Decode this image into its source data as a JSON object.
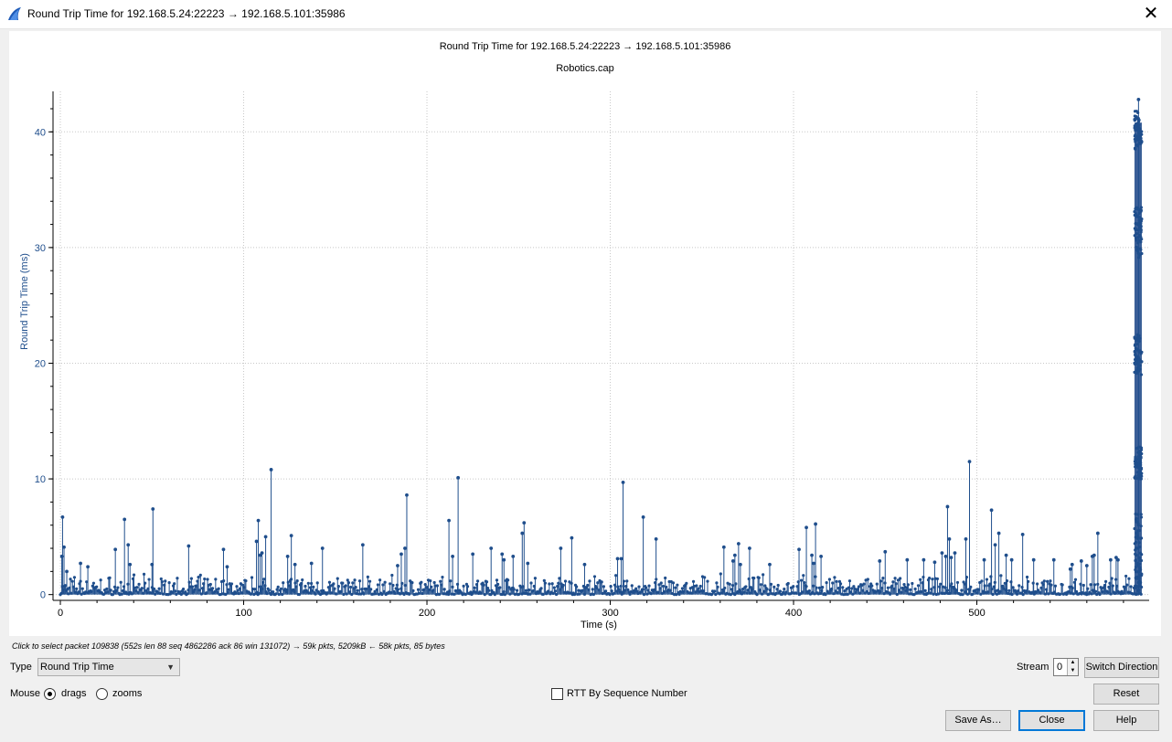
{
  "window": {
    "title": "Round Trip Time for 192.168.5.24:22223 → 192.168.5.101:35986"
  },
  "plot": {
    "title": "Round Trip Time for 192.168.5.24:22223 → 192.168.5.101:35986",
    "subtitle": "Robotics.cap",
    "accent_color": "#1f4e8c",
    "final_burst_color": "#3b5f97"
  },
  "chart_data": {
    "type": "scatter",
    "title": "Round Trip Time for 192.168.5.24:22223 → 192.168.5.101:35986",
    "subtitle": "Robotics.cap",
    "xlabel": "Time (s)",
    "ylabel": "Round Trip Time (ms)",
    "xlim": [
      -4,
      594
    ],
    "ylim": [
      -0.5,
      43.5
    ],
    "x_ticks": [
      0,
      100,
      200,
      300,
      400,
      500
    ],
    "y_ticks": [
      0,
      10,
      20,
      30,
      40
    ],
    "x_tick_labels": [
      "0",
      "100",
      "200",
      "300",
      "400",
      "500"
    ],
    "y_tick_labels": [
      "0",
      "10",
      "20",
      "30",
      "40"
    ],
    "grid": true,
    "style": "impulse-with-dots",
    "baseline_noise": {
      "x_start": 0,
      "x_end": 590,
      "typical_max_ms": 1.5
    },
    "spikes": [
      {
        "x": 0.8,
        "y": 3.3
      },
      {
        "x": 1.2,
        "y": 6.7
      },
      {
        "x": 2,
        "y": 4.1
      },
      {
        "x": 3.5,
        "y": 2.0
      },
      {
        "x": 11,
        "y": 2.7
      },
      {
        "x": 15,
        "y": 2.4
      },
      {
        "x": 30,
        "y": 3.9
      },
      {
        "x": 35,
        "y": 6.5
      },
      {
        "x": 37,
        "y": 4.3
      },
      {
        "x": 38,
        "y": 2.6
      },
      {
        "x": 50.5,
        "y": 7.4
      },
      {
        "x": 50,
        "y": 2.6
      },
      {
        "x": 70,
        "y": 4.2
      },
      {
        "x": 89,
        "y": 3.9
      },
      {
        "x": 91,
        "y": 2.4
      },
      {
        "x": 107,
        "y": 4.6
      },
      {
        "x": 108,
        "y": 6.4
      },
      {
        "x": 109,
        "y": 3.4
      },
      {
        "x": 110,
        "y": 3.6
      },
      {
        "x": 112,
        "y": 5.0
      },
      {
        "x": 115,
        "y": 10.8
      },
      {
        "x": 124,
        "y": 3.3
      },
      {
        "x": 126,
        "y": 5.1
      },
      {
        "x": 128,
        "y": 2.6
      },
      {
        "x": 137,
        "y": 2.7
      },
      {
        "x": 143,
        "y": 4.0
      },
      {
        "x": 165,
        "y": 4.3
      },
      {
        "x": 184,
        "y": 2.5
      },
      {
        "x": 186,
        "y": 3.5
      },
      {
        "x": 188,
        "y": 4.0
      },
      {
        "x": 189,
        "y": 8.6
      },
      {
        "x": 212,
        "y": 6.4
      },
      {
        "x": 214,
        "y": 3.3
      },
      {
        "x": 217,
        "y": 10.1
      },
      {
        "x": 225,
        "y": 3.5
      },
      {
        "x": 235,
        "y": 4.0
      },
      {
        "x": 241,
        "y": 3.5
      },
      {
        "x": 242,
        "y": 3.0
      },
      {
        "x": 247,
        "y": 3.3
      },
      {
        "x": 252,
        "y": 5.3
      },
      {
        "x": 253,
        "y": 6.2
      },
      {
        "x": 255,
        "y": 2.7
      },
      {
        "x": 273,
        "y": 4.0
      },
      {
        "x": 279,
        "y": 4.9
      },
      {
        "x": 286,
        "y": 2.6
      },
      {
        "x": 304,
        "y": 3.1
      },
      {
        "x": 306,
        "y": 3.1
      },
      {
        "x": 307,
        "y": 9.7
      },
      {
        "x": 318,
        "y": 6.7
      },
      {
        "x": 325,
        "y": 4.8
      },
      {
        "x": 362,
        "y": 4.1
      },
      {
        "x": 367,
        "y": 2.9
      },
      {
        "x": 368,
        "y": 3.4
      },
      {
        "x": 370,
        "y": 4.4
      },
      {
        "x": 371,
        "y": 2.6
      },
      {
        "x": 376,
        "y": 4.0
      },
      {
        "x": 387,
        "y": 2.6
      },
      {
        "x": 403,
        "y": 3.9
      },
      {
        "x": 407,
        "y": 5.8
      },
      {
        "x": 410,
        "y": 3.4
      },
      {
        "x": 411,
        "y": 2.7
      },
      {
        "x": 412,
        "y": 6.1
      },
      {
        "x": 415,
        "y": 3.3
      },
      {
        "x": 447,
        "y": 2.9
      },
      {
        "x": 450,
        "y": 3.7
      },
      {
        "x": 462,
        "y": 3.0
      },
      {
        "x": 471,
        "y": 3.0
      },
      {
        "x": 477,
        "y": 2.8
      },
      {
        "x": 481,
        "y": 3.6
      },
      {
        "x": 483,
        "y": 3.3
      },
      {
        "x": 484,
        "y": 7.6
      },
      {
        "x": 485,
        "y": 4.8
      },
      {
        "x": 486,
        "y": 3.2
      },
      {
        "x": 488,
        "y": 3.6
      },
      {
        "x": 494,
        "y": 4.8
      },
      {
        "x": 496,
        "y": 11.5
      },
      {
        "x": 504,
        "y": 3.0
      },
      {
        "x": 508,
        "y": 7.3
      },
      {
        "x": 510,
        "y": 4.3
      },
      {
        "x": 512,
        "y": 5.3
      },
      {
        "x": 516,
        "y": 3.4
      },
      {
        "x": 519,
        "y": 3.0
      },
      {
        "x": 525,
        "y": 5.2
      },
      {
        "x": 531,
        "y": 3.0
      },
      {
        "x": 542,
        "y": 3.0
      },
      {
        "x": 551,
        "y": 2.2
      },
      {
        "x": 552,
        "y": 2.6
      },
      {
        "x": 557,
        "y": 2.9
      },
      {
        "x": 560,
        "y": 2.5
      },
      {
        "x": 563,
        "y": 3.3
      },
      {
        "x": 564,
        "y": 3.4
      },
      {
        "x": 566,
        "y": 5.3
      },
      {
        "x": 573,
        "y": 3.0
      },
      {
        "x": 576,
        "y": 3.2
      },
      {
        "x": 577,
        "y": 3.0
      }
    ],
    "final_burst": {
      "x_range": [
        586,
        590
      ],
      "y_range": [
        0,
        42.8
      ],
      "peak": {
        "x": 588.2,
        "y": 42.8
      },
      "clusters_ms": [
        [
          38.5,
          41.8
        ],
        [
          29.0,
          33.5
        ],
        [
          19.0,
          22.5
        ],
        [
          10.0,
          12.8
        ],
        [
          0.3,
          7.0
        ]
      ]
    }
  },
  "status": {
    "hint": "Click to select packet 109838 (552s len 88 seq 4862286 ack 86 win 131072) → 59k pkts, 5209kB ← 58k pkts, 85 bytes"
  },
  "controls": {
    "type_label": "Type",
    "type_value": "Round Trip Time",
    "mouse_label": "Mouse",
    "mouse_drags": "drags",
    "mouse_zooms": "zooms",
    "mouse_selected": "drags",
    "rtt_seq_label": "RTT By Sequence Number",
    "rtt_seq_checked": false,
    "stream_label": "Stream",
    "stream_value": "0",
    "switch_direction": "Switch Direction",
    "reset": "Reset",
    "save_as": "Save As…",
    "close": "Close",
    "help": "Help"
  }
}
